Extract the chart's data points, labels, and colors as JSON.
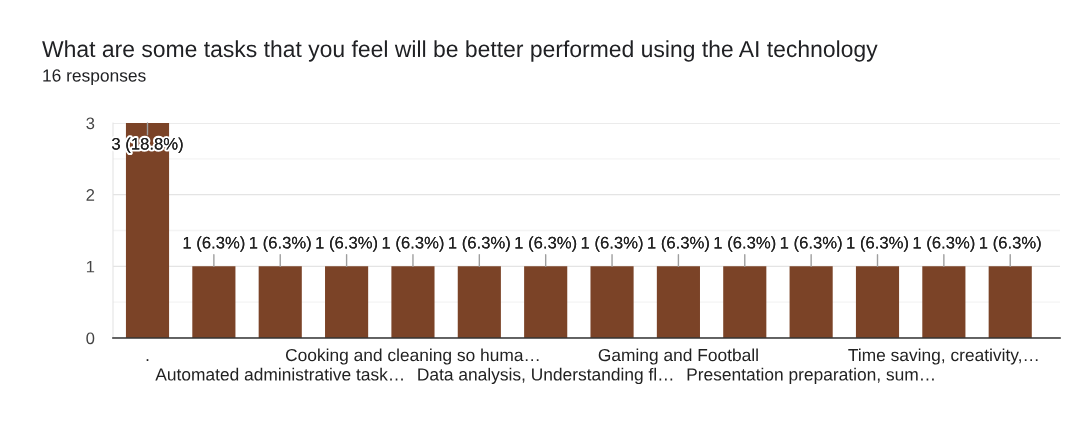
{
  "chart_data": {
    "type": "bar",
    "title": "What are some tasks that you feel will be better performed using the AI technology",
    "subtitle": "16 responses",
    "categories": [
      ".",
      null,
      "Automated administrative task…",
      null,
      "Cooking and cleaning so huma…",
      null,
      "Data analysis, Understanding fl…",
      null,
      "Gaming and Football",
      null,
      "Presentation preparation, sum…",
      null,
      "Time saving, creativity,…",
      null
    ],
    "values": [
      3,
      1,
      1,
      1,
      1,
      1,
      1,
      1,
      1,
      1,
      1,
      1,
      1,
      1
    ],
    "value_labels": [
      "3 (18.8%)",
      "1 (6.3%)",
      "1 (6.3%)",
      "1 (6.3%)",
      "1 (6.3%)",
      "1 (6.3%)",
      "1 (6.3%)",
      "1 (6.3%)",
      "1 (6.3%)",
      "1 (6.3%)",
      "1 (6.3%)",
      "1 (6.3%)",
      "1 (6.3%)",
      "1 (6.3%)"
    ],
    "color": "#7b4327",
    "ylim": [
      0,
      3
    ],
    "yticks": [
      0,
      {
        "value": 0.5,
        "label": null
      },
      1,
      {
        "value": 1.5,
        "label": null
      },
      2,
      {
        "value": 2.5,
        "label": null
      },
      3
    ],
    "grid": "y"
  }
}
